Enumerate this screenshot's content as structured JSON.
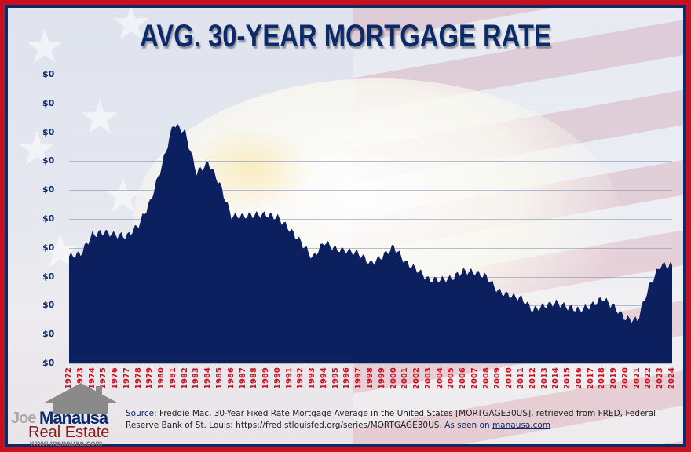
{
  "title": "AVG. 30-YEAR MORTGAGE RATE",
  "y_axis_labels": [
    "$0",
    "$0",
    "$0",
    "$0",
    "$0",
    "$0",
    "$0",
    "$0",
    "$0",
    "$0",
    "$0"
  ],
  "source": {
    "lead": "Source:",
    "text": " Freddie Mac, 30-Year Fixed Rate Mortgage Average in the United States [MORTGAGE30US], retrieved from FRED, Federal Reserve Bank of St. Louis; https://fred.stlouisfed.org/series/MORTGAGE30US.",
    "seen": " As seen on ",
    "site": "manausa.com"
  },
  "logo": {
    "joe": "Joe",
    "manausa": "Manausa",
    "real_estate": "Real Estate",
    "url": "www.manausa.com"
  },
  "colors": {
    "area": "#0c1f5e",
    "title": "#0c2a6a",
    "year_labels": "#cc1020",
    "frame_outer": "#c8101e",
    "frame_inner": "#0d2b66"
  },
  "chart_data": {
    "type": "area",
    "title": "AVG. 30-YEAR MORTGAGE RATE",
    "xlabel": "",
    "ylabel": "",
    "y_tick_labels": [
      "$0",
      "$0",
      "$0",
      "$0",
      "$0",
      "$0",
      "$0",
      "$0",
      "$0",
      "$0",
      "$0"
    ],
    "ylim": [
      0,
      20
    ],
    "grid": true,
    "legend": "none",
    "categories": [
      "1972",
      "1973",
      "1974",
      "1975",
      "1976",
      "1977",
      "1978",
      "1979",
      "1980",
      "1981",
      "1982",
      "1983",
      "1984",
      "1985",
      "1986",
      "1987",
      "1988",
      "1989",
      "1990",
      "1991",
      "1992",
      "1993",
      "1994",
      "1995",
      "1996",
      "1997",
      "1998",
      "1999",
      "2000",
      "2001",
      "2002",
      "2003",
      "2004",
      "2005",
      "2006",
      "2007",
      "2008",
      "2009",
      "2010",
      "2011",
      "2012",
      "2013",
      "2014",
      "2015",
      "2016",
      "2017",
      "2018",
      "2019",
      "2020",
      "2021",
      "2022",
      "2023",
      "2024"
    ],
    "series": [
      {
        "name": "30-Year Fixed Rate Mortgage Average",
        "values": [
          7.4,
          7.6,
          8.9,
          9.1,
          8.9,
          8.8,
          9.6,
          11.2,
          13.7,
          16.6,
          16.0,
          13.2,
          13.9,
          12.4,
          10.2,
          10.2,
          10.3,
          10.3,
          10.1,
          9.3,
          8.4,
          7.3,
          8.4,
          7.9,
          7.8,
          7.6,
          6.9,
          7.4,
          8.1,
          7.0,
          6.5,
          5.8,
          5.8,
          5.9,
          6.4,
          6.3,
          6.0,
          5.0,
          4.7,
          4.5,
          3.7,
          4.0,
          4.2,
          3.9,
          3.7,
          4.0,
          4.5,
          3.9,
          3.1,
          3.0,
          5.3,
          6.8,
          6.8
        ]
      }
    ]
  }
}
